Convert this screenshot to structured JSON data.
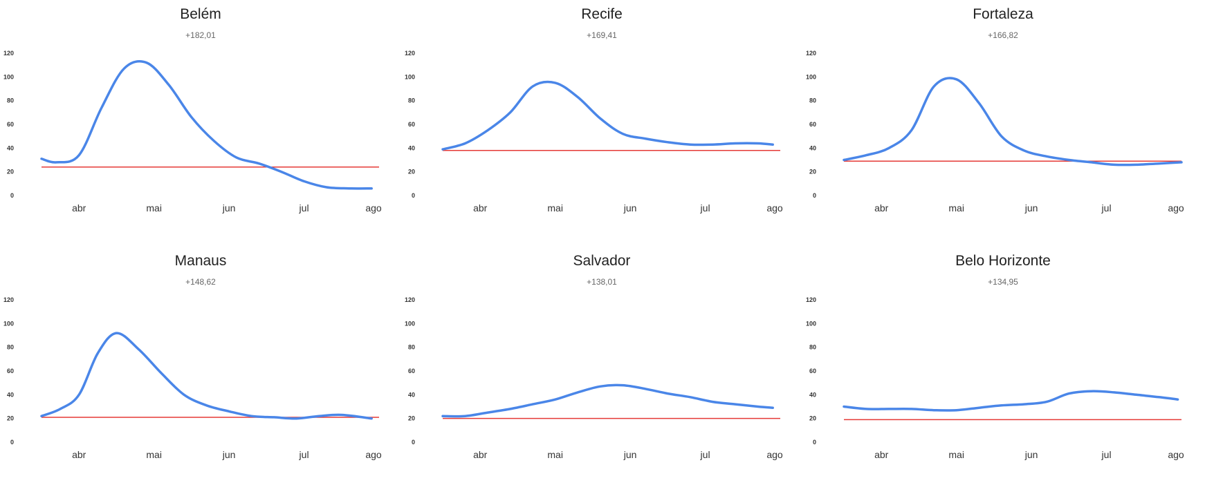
{
  "chart_data": [
    {
      "type": "line",
      "title": "Belém",
      "subtitle": "+182,01",
      "x": [
        0,
        0.2,
        0.5,
        0.8,
        1.1,
        1.4,
        1.7,
        2.0,
        2.3,
        2.6,
        2.9,
        3.2,
        3.5,
        3.8,
        4.1,
        4.4
      ],
      "categories": [
        "abr",
        "mai",
        "jun",
        "jul",
        "ago"
      ],
      "series": [
        {
          "values": [
            31,
            28,
            34,
            74,
            107,
            112,
            93,
            66,
            46,
            32,
            27,
            20,
            12,
            7,
            6,
            6
          ],
          "color": "#4a86e8"
        }
      ],
      "reference_line": {
        "value": 24,
        "color": "#e53935"
      },
      "yticks": [
        0,
        20,
        40,
        60,
        80,
        100,
        120
      ],
      "ylim": [
        0,
        120
      ]
    },
    {
      "type": "line",
      "title": "Recife",
      "subtitle": "+169,41",
      "x": [
        0,
        0.3,
        0.6,
        0.9,
        1.2,
        1.5,
        1.8,
        2.1,
        2.4,
        2.7,
        3.0,
        3.3,
        3.6,
        3.9,
        4.2,
        4.4
      ],
      "categories": [
        "abr",
        "mai",
        "jun",
        "jul",
        "ago"
      ],
      "series": [
        {
          "values": [
            39,
            44,
            55,
            70,
            92,
            95,
            83,
            65,
            52,
            48,
            45,
            43,
            43,
            44,
            44,
            43
          ],
          "color": "#4a86e8"
        }
      ],
      "reference_line": {
        "value": 38,
        "color": "#e53935"
      },
      "yticks": [
        0,
        20,
        40,
        60,
        80,
        100,
        120
      ],
      "ylim": [
        0,
        120
      ]
    },
    {
      "type": "line",
      "title": "Fortaleza",
      "subtitle": "+166,82",
      "x": [
        0,
        0.3,
        0.6,
        0.9,
        1.2,
        1.5,
        1.8,
        2.1,
        2.4,
        2.7,
        3.0,
        3.3,
        3.6,
        3.9,
        4.2,
        4.5
      ],
      "categories": [
        "abr",
        "mai",
        "jun",
        "jul",
        "ago"
      ],
      "series": [
        {
          "values": [
            30,
            34,
            40,
            55,
            92,
            98,
            78,
            50,
            38,
            33,
            30,
            28,
            26,
            26,
            27,
            28
          ],
          "color": "#4a86e8"
        }
      ],
      "reference_line": {
        "value": 29,
        "color": "#e53935"
      },
      "yticks": [
        0,
        20,
        40,
        60,
        80,
        100,
        120
      ],
      "ylim": [
        0,
        120
      ]
    },
    {
      "type": "line",
      "title": "Manaus",
      "subtitle": "+148,62",
      "x": [
        0,
        0.25,
        0.5,
        0.75,
        1.0,
        1.3,
        1.6,
        1.9,
        2.2,
        2.5,
        2.8,
        3.1,
        3.4,
        3.7,
        4.0,
        4.4
      ],
      "categories": [
        "abr",
        "mai",
        "jun",
        "jul",
        "ago"
      ],
      "series": [
        {
          "values": [
            22,
            28,
            40,
            75,
            92,
            78,
            58,
            40,
            31,
            26,
            22,
            21,
            20,
            22,
            23,
            20
          ],
          "color": "#4a86e8"
        }
      ],
      "reference_line": {
        "value": 21,
        "color": "#e53935"
      },
      "yticks": [
        0,
        20,
        40,
        60,
        80,
        100,
        120
      ],
      "ylim": [
        0,
        120
      ]
    },
    {
      "type": "line",
      "title": "Salvador",
      "subtitle": "+138,01",
      "x": [
        0,
        0.3,
        0.6,
        0.9,
        1.2,
        1.5,
        1.8,
        2.1,
        2.4,
        2.7,
        3.0,
        3.3,
        3.6,
        3.9,
        4.2,
        4.4
      ],
      "categories": [
        "abr",
        "mai",
        "jun",
        "jul",
        "ago"
      ],
      "series": [
        {
          "values": [
            22,
            22,
            25,
            28,
            32,
            36,
            42,
            47,
            48,
            45,
            41,
            38,
            34,
            32,
            30,
            29
          ],
          "color": "#4a86e8"
        }
      ],
      "reference_line": {
        "value": 20,
        "color": "#e53935"
      },
      "yticks": [
        0,
        20,
        40,
        60,
        80,
        100,
        120
      ],
      "ylim": [
        0,
        120
      ]
    },
    {
      "type": "line",
      "title": "Belo Horizonte",
      "subtitle": "+134,95",
      "x": [
        0,
        0.3,
        0.6,
        0.9,
        1.2,
        1.5,
        1.8,
        2.1,
        2.4,
        2.7,
        3.0,
        3.3,
        3.6,
        3.9,
        4.2,
        4.45
      ],
      "categories": [
        "abr",
        "mai",
        "jun",
        "jul",
        "ago"
      ],
      "series": [
        {
          "values": [
            30,
            28,
            28,
            28,
            27,
            27,
            29,
            31,
            32,
            34,
            41,
            43,
            42,
            40,
            38,
            36
          ],
          "color": "#4a86e8"
        }
      ],
      "reference_line": {
        "value": 19,
        "color": "#e53935"
      },
      "yticks": [
        0,
        20,
        40,
        60,
        80,
        100,
        120
      ],
      "ylim": [
        0,
        120
      ]
    }
  ]
}
